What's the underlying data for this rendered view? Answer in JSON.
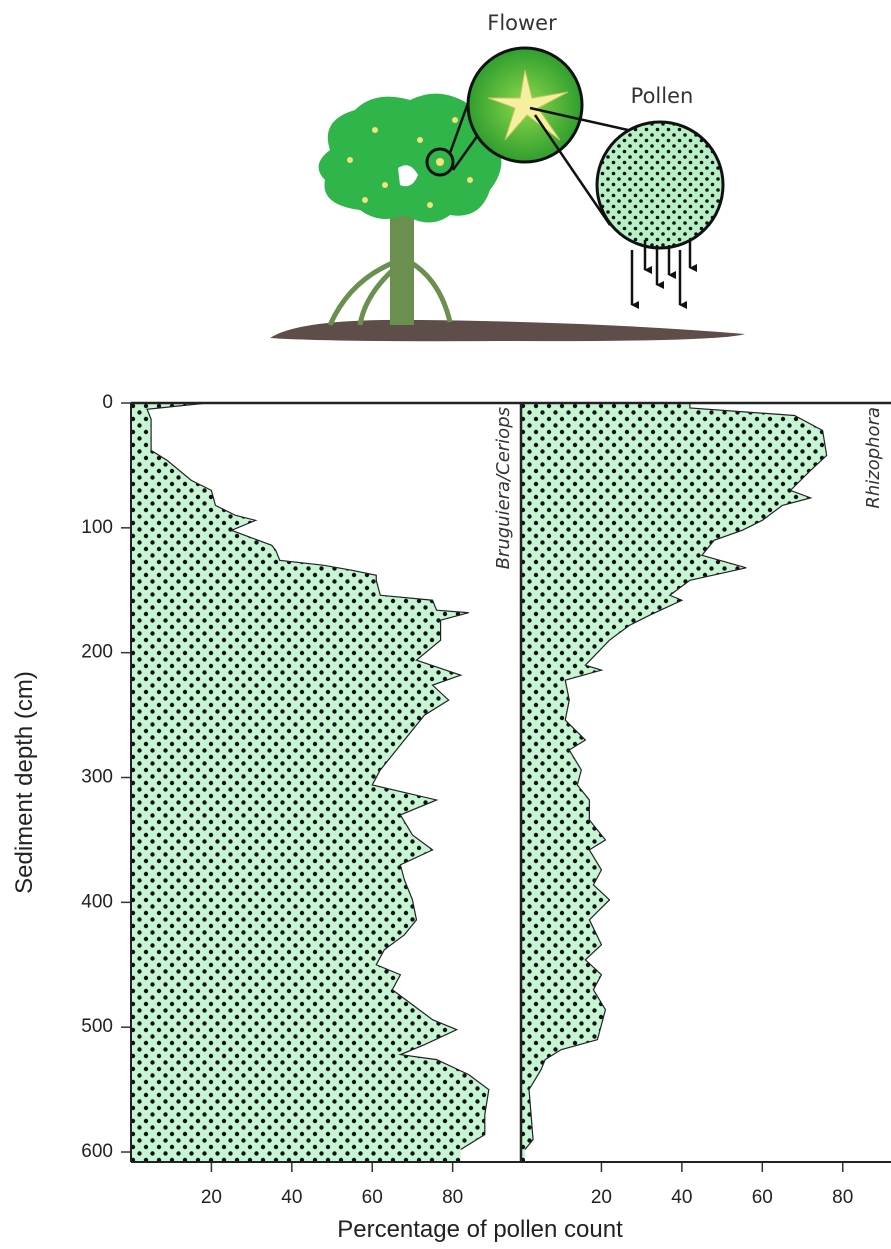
{
  "illustration": {
    "flower_label": "Flower",
    "pollen_label": "Pollen"
  },
  "chart_data": [
    {
      "type": "area",
      "title": "Bruguiera/Ceriops",
      "color": "#c6f5d3",
      "ylabel": "Sediment depth (cm)",
      "xlabel": "Percentage of pollen count",
      "depth": [
        0,
        5,
        13,
        38,
        46,
        62,
        70,
        82,
        90,
        94,
        102,
        114,
        118,
        126,
        130,
        134,
        138,
        142,
        154,
        158,
        166,
        168,
        174,
        190,
        206,
        218,
        226,
        238,
        250,
        270,
        294,
        306,
        318,
        330,
        346,
        358,
        370,
        382,
        398,
        414,
        426,
        438,
        450,
        458,
        470,
        482,
        494,
        502,
        514,
        522,
        526,
        538,
        550,
        570,
        586,
        598
      ],
      "values": [
        19,
        4,
        5,
        5,
        9,
        15,
        20,
        21,
        26,
        31,
        25,
        35,
        36,
        37,
        48,
        55,
        61,
        61,
        62,
        75,
        76,
        84,
        77,
        77,
        71,
        82,
        75,
        79,
        73,
        68,
        62,
        60,
        76,
        67,
        70,
        75,
        67,
        68,
        70,
        71,
        68,
        63,
        61,
        67,
        65,
        70,
        75,
        81,
        73,
        67,
        76,
        84,
        89,
        88,
        88,
        82
      ],
      "xlim": [
        0,
        97
      ],
      "xticks": [
        20,
        40,
        60,
        80
      ],
      "ylim": [
        0,
        608
      ],
      "yticks": [
        0,
        100,
        200,
        300,
        400,
        500,
        600
      ]
    },
    {
      "type": "area",
      "title": "Rhizophora",
      "color": "#c6f5d3",
      "depth": [
        0,
        4,
        10,
        22,
        42,
        54,
        70,
        76,
        82,
        94,
        102,
        110,
        122,
        132,
        142,
        154,
        158,
        170,
        178,
        190,
        210,
        214,
        222,
        238,
        254,
        270,
        278,
        294,
        306,
        318,
        334,
        350,
        358,
        374,
        386,
        398,
        414,
        434,
        446,
        458,
        470,
        486,
        498,
        510,
        518,
        526,
        534,
        550,
        590,
        598
      ],
      "values": [
        42,
        42,
        68,
        75,
        76,
        72,
        67,
        72,
        65,
        60,
        55,
        48,
        45,
        56,
        42,
        37,
        40,
        32,
        27,
        22,
        16,
        20,
        11,
        12,
        11,
        16,
        12,
        15,
        14,
        17,
        17,
        21,
        17,
        20,
        18,
        22,
        17,
        20,
        16,
        20,
        18,
        21,
        20,
        19,
        10,
        6,
        5,
        2,
        3,
        1
      ],
      "xlim": [
        0,
        92
      ],
      "xticks": [
        20,
        40,
        60,
        80
      ],
      "ylim": [
        0,
        608
      ]
    }
  ]
}
